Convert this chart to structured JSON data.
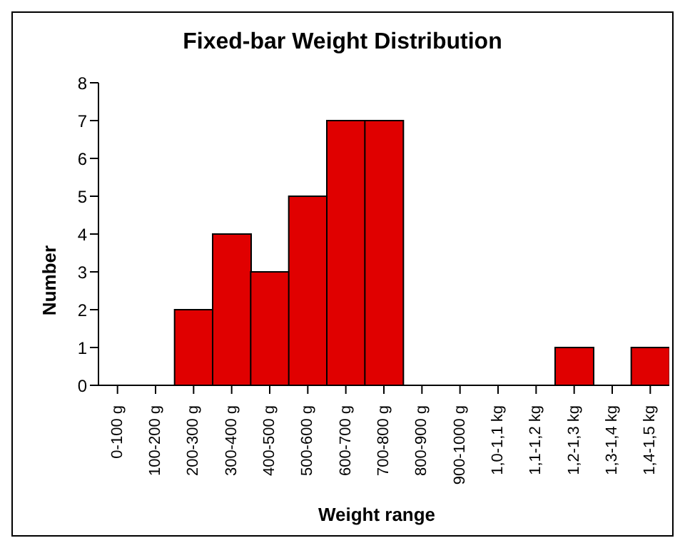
{
  "chart_data": {
    "type": "bar",
    "title": "Fixed-bar Weight Distribution",
    "xlabel": "Weight range",
    "ylabel": "Number",
    "categories": [
      "0-100 g",
      "100-200 g",
      "200-300 g",
      "300-400 g",
      "400-500 g",
      "500-600 g",
      "600-700 g",
      "700-800 g",
      "800-900 g",
      "900-1000 g",
      "1,0-1,1 kg",
      "1,1-1,2 kg",
      "1,2-1,3 kg",
      "1,3-1,4 kg",
      "1,4-1,5 kg"
    ],
    "values": [
      0,
      0,
      2,
      4,
      3,
      5,
      7,
      7,
      0,
      0,
      0,
      0,
      1,
      0,
      1
    ],
    "color": "#e00000",
    "ylim": [
      0,
      8
    ],
    "yticks": [
      0,
      1,
      2,
      3,
      4,
      5,
      6,
      7,
      8
    ],
    "grid": false,
    "legend": false
  }
}
